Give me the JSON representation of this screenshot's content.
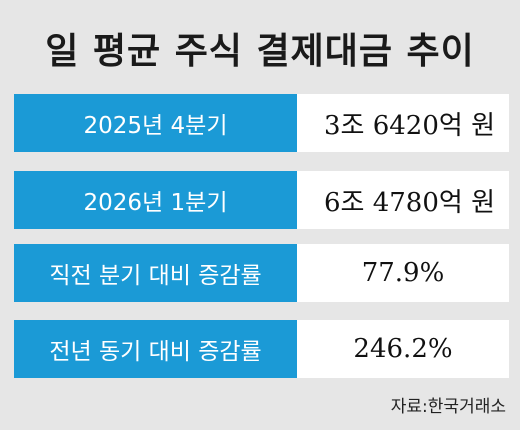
{
  "title": "일 평균 주식 결제대금 추이",
  "colors": {
    "label_background": "#1b9ad6",
    "card_background": "#e6e6e6",
    "value_background": "#ffffff"
  },
  "rows": [
    {
      "label": "2025년 4분기",
      "value": "3조 6420억 원"
    },
    {
      "label": "2026년 1분기",
      "value": "6조 4780억 원"
    },
    {
      "label": "직전 분기 대비 증감률",
      "value": "77.9%"
    },
    {
      "label": "전년 동기 대비 증감률",
      "value": "246.2%"
    }
  ],
  "source": "자료:한국거래소"
}
